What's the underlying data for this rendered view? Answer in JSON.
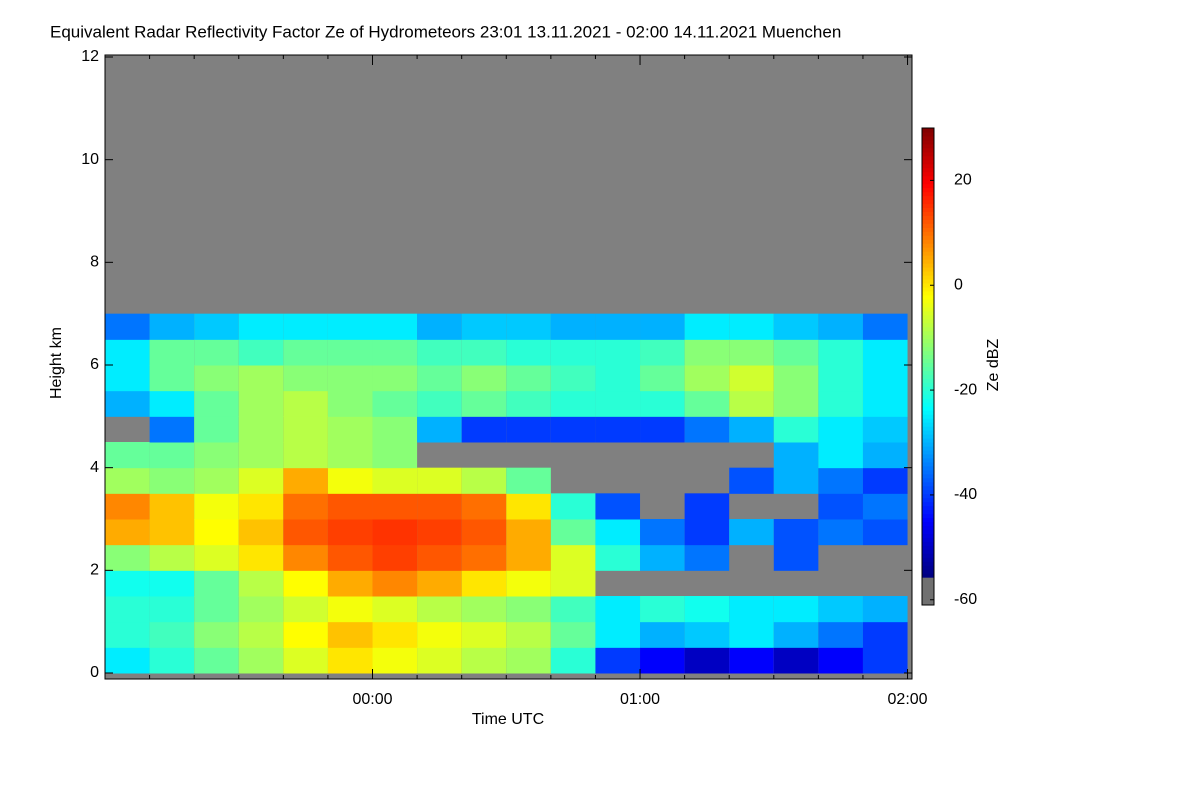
{
  "chart_data": {
    "type": "heatmap",
    "title": "Equivalent Radar Reflectivity Factor Ze of Hydrometeors   23:01 13.11.2021 - 02:00 14.11.2021 Muenchen",
    "x_label": "Time UTC",
    "y_label": "Height km",
    "colorbar_label": "Ze dBZ",
    "xlim": [
      -60,
      121
    ],
    "xticks": [
      {
        "value": 0,
        "label": "00:00"
      },
      {
        "value": 60,
        "label": "01:00"
      },
      {
        "value": 120,
        "label": "02:00"
      }
    ],
    "xminorticks": [
      -50,
      -40,
      -30,
      -20,
      -10,
      10,
      20,
      30,
      40,
      50,
      70,
      80,
      90,
      100,
      110
    ],
    "ylim": [
      0,
      12
    ],
    "yticks": [
      0,
      2,
      4,
      6,
      8,
      10,
      12
    ],
    "zlim": [
      -61,
      30
    ],
    "zticks": [
      20,
      0,
      -20,
      -40,
      -60
    ],
    "background": "#808080",
    "x": [
      -55,
      -45,
      -35,
      -25,
      -15,
      -5,
      5,
      15,
      25,
      35,
      45,
      55,
      65,
      75,
      85,
      95,
      105,
      115
    ],
    "y": [
      0.25,
      0.75,
      1.25,
      1.75,
      2.25,
      2.75,
      3.25,
      3.75,
      4.25,
      4.75,
      5.25,
      5.75,
      6.25,
      6.75
    ],
    "z": [
      [
        -25,
        -20,
        -15,
        -10,
        -5,
        0,
        -3,
        -5,
        -8,
        -10,
        -20,
        -40,
        -45,
        -50,
        -45,
        -50,
        -45,
        -40
      ],
      [
        -20,
        -18,
        -12,
        -8,
        -2,
        3,
        0,
        -3,
        -5,
        -8,
        -15,
        -25,
        -30,
        -28,
        -25,
        -30,
        -35,
        -40
      ],
      [
        -20,
        -20,
        -15,
        -10,
        -6,
        -3,
        -5,
        -8,
        -10,
        -12,
        -18,
        -25,
        -20,
        -22,
        -25,
        -25,
        -28,
        -30
      ],
      [
        -22,
        -22,
        -15,
        -8,
        -2,
        5,
        8,
        5,
        0,
        -3,
        -5,
        null,
        null,
        null,
        null,
        null,
        null,
        null
      ],
      [
        -12,
        -8,
        -5,
        0,
        8,
        12,
        14,
        12,
        10,
        5,
        -5,
        -20,
        -30,
        -35,
        null,
        -38,
        null,
        null
      ],
      [
        5,
        3,
        -2,
        3,
        12,
        14,
        15,
        14,
        12,
        5,
        -15,
        -25,
        -35,
        -40,
        -30,
        -38,
        -35,
        -38
      ],
      [
        8,
        3,
        -3,
        0,
        10,
        12,
        12,
        12,
        10,
        0,
        -20,
        -38,
        null,
        -40,
        null,
        null,
        -38,
        -35
      ],
      [
        -10,
        -12,
        -10,
        -5,
        5,
        -3,
        -5,
        -5,
        -8,
        -15,
        null,
        null,
        null,
        null,
        -38,
        -30,
        -35,
        -40
      ],
      [
        -15,
        -15,
        -12,
        -10,
        -8,
        -10,
        -12,
        null,
        null,
        null,
        null,
        null,
        null,
        null,
        null,
        -30,
        -25,
        -30
      ],
      [
        null,
        -35,
        -15,
        -10,
        -8,
        -10,
        -12,
        -30,
        -40,
        -40,
        -40,
        -40,
        -40,
        -35,
        -30,
        -20,
        -25,
        -28
      ],
      [
        -30,
        -25,
        -15,
        -10,
        -8,
        -12,
        -15,
        -18,
        -15,
        -18,
        -20,
        -20,
        -20,
        -15,
        -8,
        -12,
        -20,
        -25
      ],
      [
        -25,
        -15,
        -12,
        -10,
        -12,
        -12,
        -12,
        -15,
        -12,
        -15,
        -18,
        -20,
        -15,
        -10,
        -6,
        -12,
        -20,
        -25
      ],
      [
        -25,
        -15,
        -15,
        -18,
        -15,
        -15,
        -15,
        -18,
        -18,
        -20,
        -20,
        -20,
        -18,
        -12,
        -12,
        -15,
        -20,
        -25
      ],
      [
        -35,
        -30,
        -28,
        -25,
        -25,
        -25,
        -25,
        -30,
        -28,
        -28,
        -30,
        -30,
        -30,
        -25,
        -25,
        -28,
        -30,
        -35
      ]
    ]
  }
}
